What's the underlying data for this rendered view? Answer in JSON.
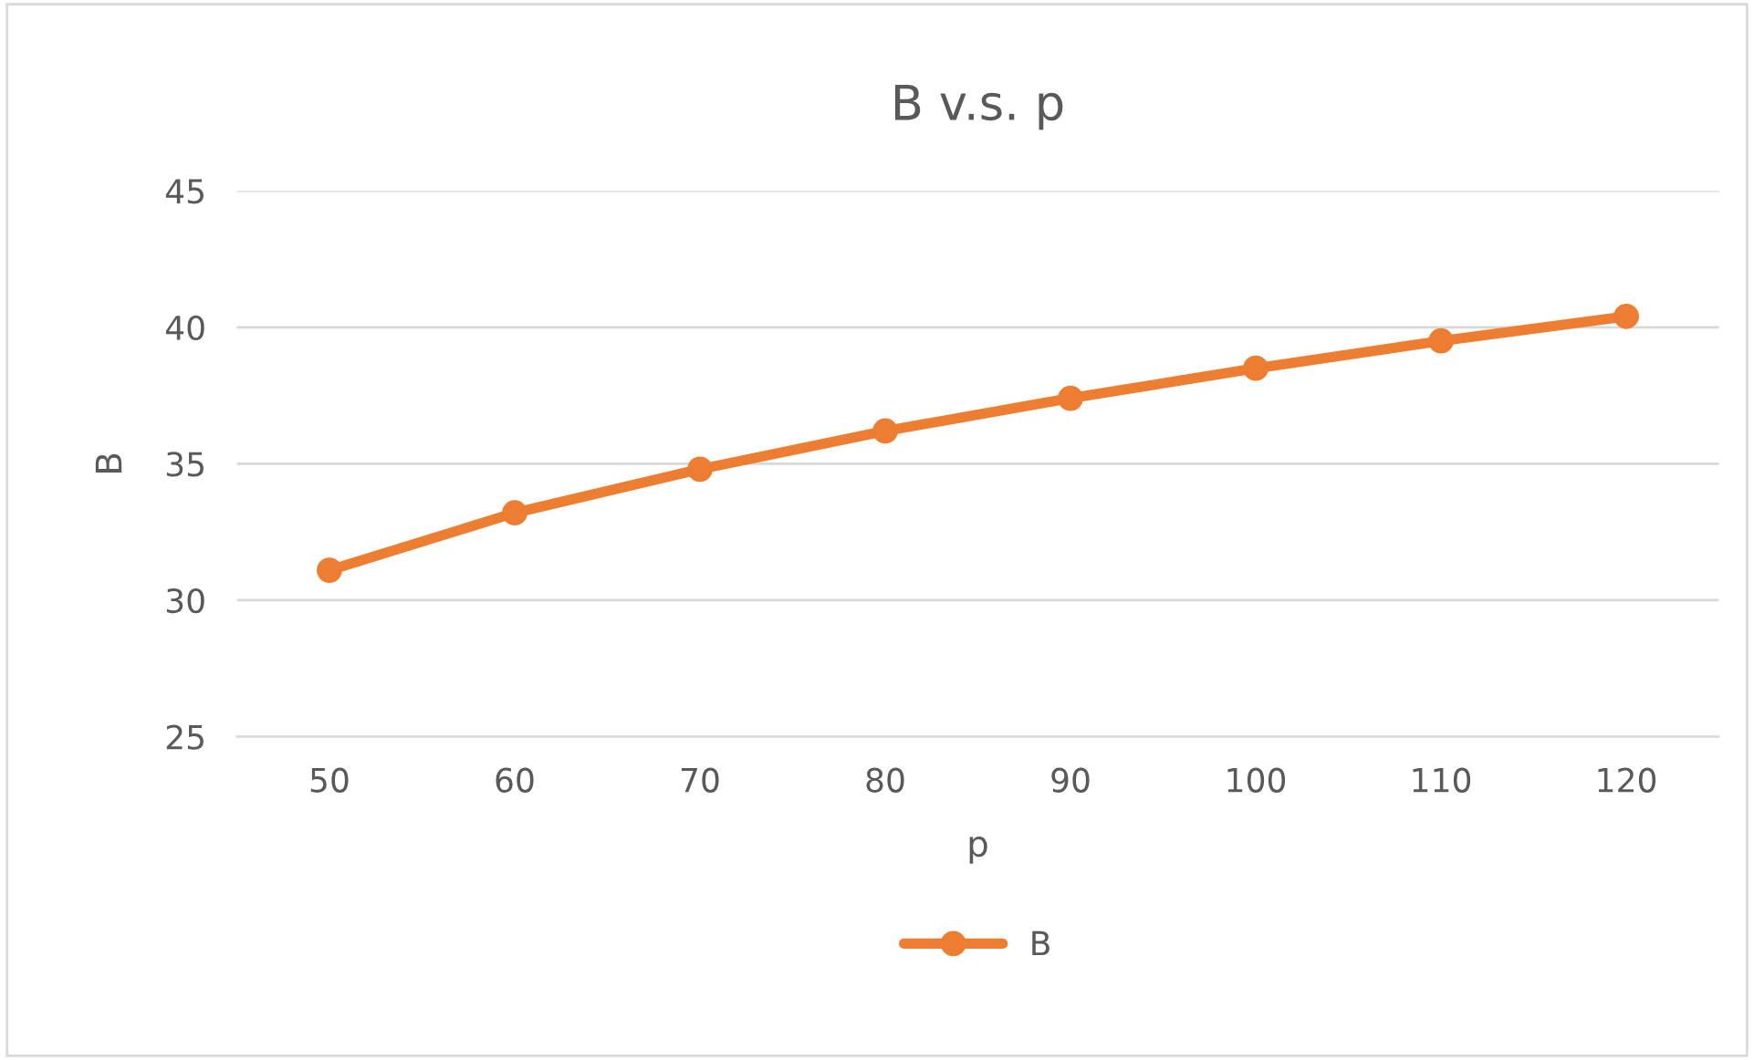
{
  "chart_data": {
    "type": "line",
    "title": "B v.s. p",
    "xlabel": "p",
    "ylabel": "B",
    "categories": [
      "50",
      "60",
      "70",
      "80",
      "90",
      "100",
      "110",
      "120"
    ],
    "series": [
      {
        "name": "B",
        "color": "#ed7d31",
        "values": [
          31.1,
          33.2,
          34.8,
          36.2,
          37.4,
          38.5,
          39.5,
          40.4
        ]
      }
    ],
    "ylim": [
      25,
      45
    ],
    "yticks": [
      25,
      30,
      35,
      40,
      45
    ],
    "grid": "y",
    "legend": "bottom",
    "marker": "circle",
    "line_style": "solid"
  }
}
